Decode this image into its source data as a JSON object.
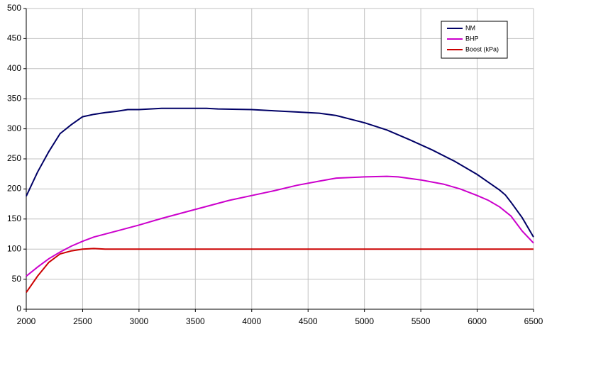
{
  "chart_data": {
    "type": "line",
    "series": [
      {
        "name": "NM",
        "color": "#000066",
        "x": [
          2000,
          2100,
          2200,
          2300,
          2400,
          2500,
          2600,
          2700,
          2800,
          2900,
          3000,
          3200,
          3500,
          3600,
          3700,
          4000,
          4200,
          4400,
          4600,
          4750,
          5000,
          5200,
          5400,
          5600,
          5800,
          6000,
          6200,
          6250,
          6300,
          6400,
          6500
        ],
        "values": [
          188,
          228,
          262,
          292,
          307,
          320,
          324,
          327,
          329,
          332,
          332,
          334,
          334,
          334,
          333,
          332,
          330,
          328,
          326,
          322,
          310,
          298,
          282,
          265,
          246,
          224,
          198,
          190,
          178,
          152,
          120
        ]
      },
      {
        "name": "BHP",
        "color": "#cc00cc",
        "x": [
          2000,
          2100,
          2200,
          2300,
          2400,
          2500,
          2600,
          2800,
          3000,
          3200,
          3400,
          3600,
          3800,
          4000,
          4200,
          4400,
          4600,
          4750,
          5000,
          5200,
          5300,
          5500,
          5700,
          5850,
          6000,
          6100,
          6200,
          6300,
          6400,
          6500
        ],
        "values": [
          55,
          70,
          84,
          95,
          105,
          113,
          120,
          130,
          140,
          151,
          161,
          171,
          181,
          189,
          197,
          206,
          213,
          218,
          220,
          221,
          220,
          215,
          208,
          200,
          189,
          181,
          170,
          155,
          130,
          110
        ]
      },
      {
        "name": "Boost (kPa)",
        "color": "#cc0000",
        "x": [
          2000,
          2100,
          2200,
          2300,
          2400,
          2500,
          2600,
          2700,
          6500
        ],
        "values": [
          28,
          55,
          78,
          92,
          97,
          100,
          101,
          100,
          100
        ]
      }
    ],
    "xlim": [
      2000,
      6500
    ],
    "xticks": [
      2000,
      2500,
      3000,
      3500,
      4000,
      4500,
      5000,
      5500,
      6000,
      6500
    ],
    "ylim": [
      0,
      500
    ],
    "yticks": [
      0,
      50,
      100,
      150,
      200,
      250,
      300,
      350,
      400,
      450,
      500
    ],
    "grid": true
  }
}
